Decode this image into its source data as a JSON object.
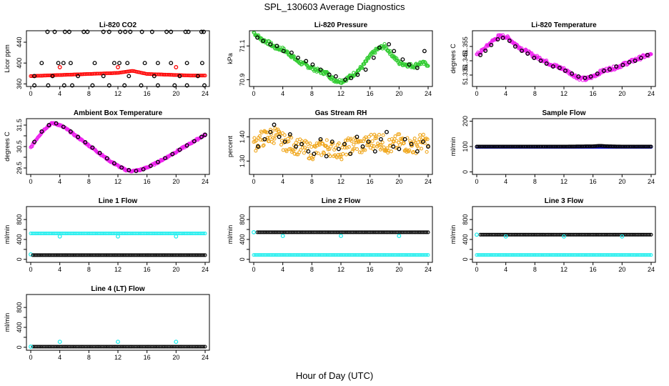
{
  "page": {
    "title": "SPL_130603  Average Diagnostics",
    "xlabel": "Hour of Day (UTC)"
  },
  "chart_data": [
    {
      "type": "scatter",
      "title": "Li-820 CO2",
      "ylabel": "Licor ppm",
      "xlim": [
        0,
        24
      ],
      "ylim": [
        355,
        462
      ],
      "xticks": [
        0,
        4,
        8,
        12,
        16,
        20,
        24
      ],
      "yticks": [
        360,
        400,
        440
      ],
      "ytick_labels": [
        "360",
        "400",
        "440"
      ],
      "series": [
        {
          "color": "#ff0000",
          "shape": "line",
          "x": [
            0,
            2,
            4,
            6,
            8,
            10,
            12,
            13,
            14,
            15,
            16,
            18,
            20,
            22,
            24
          ],
          "y": [
            375,
            376,
            377,
            378,
            379,
            380,
            381,
            383,
            385,
            382,
            379,
            378,
            377,
            376,
            376
          ]
        },
        {
          "color": "#ff0000",
          "shape": "circle",
          "x": [
            4,
            12,
            20
          ],
          "y": [
            392,
            392,
            392
          ]
        },
        {
          "color": "#000000",
          "shape": "circle",
          "x": [
            2.3,
            3.3,
            4.7,
            5.3,
            7.3,
            7.8,
            10,
            10.8,
            12.3,
            13,
            13.7,
            15.3,
            16.7,
            18.7,
            19.3,
            21.3,
            21.7,
            23.5,
            23.8
          ],
          "y": [
            460,
            460,
            460,
            460,
            460,
            460,
            460,
            460,
            460,
            460,
            460,
            460,
            460,
            460,
            460,
            460,
            460,
            460,
            460
          ]
        },
        {
          "color": "#000000",
          "shape": "circle",
          "x": [
            1.5,
            3.8,
            4.5,
            5.5,
            8.8,
            11.5,
            12.2,
            13.3,
            15.7,
            17.5,
            19.3,
            21.5,
            23.6
          ],
          "y": [
            400,
            400,
            400,
            400,
            400,
            400,
            400,
            400,
            400,
            400,
            400,
            400,
            400
          ]
        },
        {
          "color": "#000000",
          "shape": "circle",
          "x": [
            0.5,
            3,
            6.5,
            10,
            13.5,
            17,
            20.5,
            23
          ],
          "y": [
            375,
            375,
            375,
            375,
            375,
            375,
            375,
            375
          ]
        },
        {
          "color": "#000000",
          "shape": "circle",
          "x": [
            0.5,
            2.4,
            4.6,
            5.7,
            8.5,
            10.8,
            12.9,
            15.2,
            17.5,
            19.8,
            21.5,
            23.9
          ],
          "y": [
            357,
            357,
            357,
            357,
            357,
            357,
            357,
            357,
            357,
            357,
            357,
            357
          ]
        }
      ]
    },
    {
      "type": "scatter",
      "title": "Li-820 Pressure",
      "ylabel": "kPa",
      "xlim": [
        0,
        24
      ],
      "ylim": [
        70.86,
        71.19
      ],
      "xticks": [
        0,
        4,
        8,
        12,
        16,
        20,
        24
      ],
      "yticks": [
        70.9,
        71.1
      ],
      "ytick_labels": [
        "70.9",
        "71.1"
      ],
      "series": [
        {
          "color": "#33cc33",
          "shape": "band",
          "spread": 0.012,
          "x": [
            0,
            1,
            2,
            3,
            4,
            5,
            6,
            7,
            8,
            9,
            10,
            11,
            12,
            13,
            14,
            15,
            16,
            17,
            18,
            19,
            20,
            21,
            22,
            23,
            24
          ],
          "y": [
            71.18,
            71.14,
            71.12,
            71.09,
            71.08,
            71.05,
            71.01,
            70.99,
            70.97,
            70.95,
            70.94,
            70.9,
            70.89,
            70.91,
            70.94,
            70.98,
            71.04,
            71.08,
            71.1,
            71.05,
            71.0,
            70.99,
            70.98,
            71.0,
            70.99
          ]
        },
        {
          "color": "#000000",
          "shape": "circle",
          "x": [
            0.5,
            1.3,
            2.3,
            3.2,
            4.1,
            5.2,
            6.1,
            7.2,
            8.1,
            9.2,
            10.4,
            11.3,
            12.6,
            13.4,
            14.3,
            15.4,
            16.5,
            17.3,
            18.6,
            19.3,
            20.5,
            21.4,
            22.5,
            23.5
          ],
          "y": [
            71.15,
            71.13,
            71.11,
            71.1,
            71.07,
            71.06,
            71.03,
            71.01,
            70.99,
            70.96,
            70.93,
            70.92,
            70.9,
            70.91,
            70.93,
            70.96,
            71.03,
            71.09,
            71.11,
            71.07,
            71.02,
            70.99,
            70.97,
            71.07
          ]
        }
      ]
    },
    {
      "type": "scatter",
      "title": "Li-820 Temperature",
      "ylabel": "degrees C",
      "xlim": [
        0,
        24
      ],
      "ylim": [
        51.327,
        51.366
      ],
      "xticks": [
        0,
        4,
        8,
        12,
        16,
        20,
        24
      ],
      "yticks": [
        51.335,
        51.345,
        51.355
      ],
      "ytick_labels": [
        "51.335",
        "51.345",
        "51.355"
      ],
      "series": [
        {
          "color": "#ee22ee",
          "shape": "band",
          "spread": 0.0012,
          "x": [
            0,
            1,
            2,
            3,
            4,
            5,
            6,
            7,
            8,
            9,
            10,
            11,
            12,
            13,
            14,
            15,
            16,
            17,
            18,
            19,
            20,
            21,
            22,
            23,
            24
          ],
          "y": [
            51.349,
            51.353,
            51.358,
            51.362,
            51.362,
            51.358,
            51.354,
            51.351,
            51.348,
            51.346,
            51.343,
            51.341,
            51.339,
            51.336,
            51.333,
            51.332,
            51.334,
            51.337,
            51.339,
            51.34,
            51.342,
            51.344,
            51.346,
            51.348,
            51.349
          ]
        },
        {
          "color": "#000000",
          "shape": "circle",
          "x": [
            0.5,
            1.2,
            2,
            2.9,
            3.6,
            4.5,
            5.3,
            6.2,
            7,
            7.9,
            8.8,
            9.6,
            10.5,
            11.4,
            12.2,
            13.1,
            14,
            14.9,
            15.7,
            16.6,
            17.5,
            18.3,
            19.2,
            20.1,
            21,
            21.8,
            22.6,
            23.5
          ],
          "y": [
            51.349,
            51.352,
            51.356,
            51.36,
            51.361,
            51.359,
            51.355,
            51.352,
            51.35,
            51.347,
            51.345,
            51.343,
            51.341,
            51.34,
            51.338,
            51.336,
            51.334,
            51.333,
            51.334,
            51.336,
            51.338,
            51.339,
            51.341,
            51.342,
            51.344,
            51.345,
            51.347,
            51.349
          ]
        }
      ]
    },
    {
      "type": "scatter",
      "title": "Ambient Box Temperature",
      "ylabel": "degrees C",
      "xlim": [
        0,
        24
      ],
      "ylim": [
        29.2,
        31.8
      ],
      "xticks": [
        0,
        4,
        8,
        12,
        16,
        20,
        24
      ],
      "yticks": [
        29.5,
        30.0,
        30.5,
        31.0,
        31.5
      ],
      "ytick_labels": [
        "29.5",
        "30.5",
        "31.5"
      ],
      "series": [
        {
          "color": "#ee22ee",
          "shape": "band",
          "spread": 0.04,
          "x": [
            0,
            1,
            2,
            3,
            4,
            5,
            6,
            7,
            8,
            9,
            10,
            11,
            12,
            13,
            14,
            15,
            16,
            17,
            18,
            19,
            20,
            21,
            22,
            23,
            24
          ],
          "y": [
            30.45,
            30.95,
            31.35,
            31.6,
            31.5,
            31.3,
            31.05,
            30.8,
            30.55,
            30.3,
            30.05,
            29.8,
            29.6,
            29.42,
            29.35,
            29.4,
            29.52,
            29.68,
            29.86,
            30.05,
            30.25,
            30.45,
            30.65,
            30.85,
            31.05
          ]
        },
        {
          "color": "#000000",
          "shape": "circle",
          "x": [
            0.5,
            1.5,
            2.5,
            3.5,
            4.5,
            5.5,
            6.5,
            7.5,
            8.5,
            9.5,
            10.5,
            11.5,
            12.5,
            13.5,
            14.5,
            15.5,
            16.5,
            17.5,
            18.5,
            19.5,
            20.5,
            21.5,
            22.5,
            23.5,
            24
          ],
          "y": [
            30.72,
            31.2,
            31.5,
            31.58,
            31.42,
            31.2,
            30.95,
            30.7,
            30.45,
            30.2,
            29.95,
            29.72,
            29.52,
            29.4,
            29.36,
            29.44,
            29.6,
            29.78,
            29.96,
            30.15,
            30.35,
            30.55,
            30.75,
            30.95,
            31.05
          ]
        }
      ]
    },
    {
      "type": "scatter",
      "title": "Gas Stream RH",
      "ylabel": "percent",
      "xlim": [
        0,
        24
      ],
      "ylim": [
        1.245,
        1.475
      ],
      "xticks": [
        0,
        4,
        8,
        12,
        16,
        20,
        24
      ],
      "yticks": [
        1.3,
        1.4
      ],
      "ytick_labels": [
        "1.30",
        "1.40"
      ],
      "series": [
        {
          "color": "#f0a820",
          "shape": "band",
          "spread": 0.035,
          "x": [
            0,
            1,
            2,
            3,
            4,
            5,
            6,
            7,
            8,
            9,
            10,
            11,
            12,
            13,
            14,
            15,
            16,
            17,
            18,
            19,
            20,
            21,
            22,
            23,
            24
          ],
          "y": [
            1.37,
            1.39,
            1.4,
            1.41,
            1.38,
            1.37,
            1.36,
            1.35,
            1.34,
            1.35,
            1.36,
            1.35,
            1.34,
            1.36,
            1.37,
            1.36,
            1.38,
            1.39,
            1.37,
            1.36,
            1.38,
            1.37,
            1.36,
            1.38,
            1.37
          ]
        },
        {
          "color": "#000000",
          "shape": "circle",
          "x": [
            0.6,
            1.5,
            2.3,
            2.8,
            3.5,
            4.3,
            5,
            5.8,
            6.6,
            7.5,
            8.3,
            9.2,
            10,
            10.8,
            11.7,
            12.5,
            13.3,
            14.2,
            15,
            15.8,
            16.7,
            17.5,
            18.3,
            19.2,
            20,
            20.8,
            21.7,
            22.5,
            23.3,
            24
          ],
          "y": [
            1.36,
            1.39,
            1.42,
            1.45,
            1.4,
            1.38,
            1.41,
            1.36,
            1.37,
            1.34,
            1.33,
            1.39,
            1.32,
            1.38,
            1.35,
            1.37,
            1.33,
            1.4,
            1.36,
            1.38,
            1.34,
            1.39,
            1.42,
            1.36,
            1.35,
            1.39,
            1.37,
            1.34,
            1.38,
            1.36
          ]
        }
      ]
    },
    {
      "type": "scatter",
      "title": "Sample Flow",
      "ylabel": "ml/min",
      "xlim": [
        0,
        24
      ],
      "ylim": [
        -10,
        210
      ],
      "xticks": [
        0,
        4,
        8,
        12,
        16,
        20,
        24
      ],
      "yticks": [
        0,
        100,
        200
      ],
      "ytick_labels": [
        "0",
        "100",
        "200"
      ],
      "series": [
        {
          "color": "#0000cc",
          "shape": "line",
          "x": [
            0,
            24
          ],
          "y": [
            99,
            99
          ]
        },
        {
          "color": "#000000",
          "shape": "line",
          "x": [
            0,
            4,
            8,
            12,
            16,
            17,
            18,
            20,
            24
          ],
          "y": [
            100,
            100,
            100,
            100,
            101,
            103,
            101,
            100,
            100
          ]
        }
      ]
    },
    {
      "type": "scatter",
      "title": "Line 1 Flow",
      "ylabel": "ml/min",
      "xlim": [
        0,
        24
      ],
      "ylim": [
        -60,
        1060
      ],
      "xticks": [
        0,
        4,
        8,
        12,
        16,
        20,
        24
      ],
      "yticks": [
        0,
        200,
        400,
        600,
        800
      ],
      "ytick_labels": [
        "0",
        "400",
        "800"
      ],
      "series": [
        {
          "color": "#22eeee",
          "shape": "dense",
          "x": [
            0,
            24
          ],
          "y": [
            520,
            520
          ]
        },
        {
          "color": "#22eeee",
          "shape": "circle",
          "x": [
            0,
            4,
            12,
            20
          ],
          "y": [
            100,
            460,
            460,
            460
          ]
        },
        {
          "color": "#000000",
          "shape": "dense",
          "x": [
            0.3,
            24
          ],
          "y": [
            85,
            85
          ]
        }
      ]
    },
    {
      "type": "scatter",
      "title": "Line 2 Flow",
      "ylabel": "ml/min",
      "xlim": [
        0,
        24
      ],
      "ylim": [
        -60,
        1060
      ],
      "xticks": [
        0,
        4,
        8,
        12,
        16,
        20,
        24
      ],
      "yticks": [
        0,
        200,
        400,
        600,
        800
      ],
      "ytick_labels": [
        "0",
        "400",
        "800"
      ],
      "series": [
        {
          "color": "#000000",
          "shape": "dense",
          "x": [
            0.5,
            24
          ],
          "y": [
            545,
            545
          ]
        },
        {
          "color": "#22eeee",
          "shape": "circle",
          "x": [
            0,
            4,
            12,
            20
          ],
          "y": [
            545,
            470,
            470,
            470
          ]
        },
        {
          "color": "#22eeee",
          "shape": "dense",
          "x": [
            0,
            24
          ],
          "y": [
            88,
            88
          ]
        }
      ]
    },
    {
      "type": "scatter",
      "title": "Line 3 Flow",
      "ylabel": "ml/min",
      "xlim": [
        0,
        24
      ],
      "ylim": [
        -60,
        1060
      ],
      "xticks": [
        0,
        4,
        8,
        12,
        16,
        20,
        24
      ],
      "yticks": [
        0,
        200,
        400,
        600,
        800
      ],
      "ytick_labels": [
        "0",
        "400",
        "800"
      ],
      "series": [
        {
          "color": "#000000",
          "shape": "dense",
          "x": [
            0.5,
            24
          ],
          "y": [
            495,
            495
          ]
        },
        {
          "color": "#22eeee",
          "shape": "circle",
          "x": [
            0,
            4,
            12,
            20
          ],
          "y": [
            495,
            460,
            460,
            460
          ]
        },
        {
          "color": "#22eeee",
          "shape": "dense",
          "x": [
            0,
            24
          ],
          "y": [
            88,
            88
          ]
        }
      ]
    },
    {
      "type": "scatter",
      "title": "Line 4 (LT) Flow",
      "ylabel": "ml/min",
      "xlim": [
        0,
        24
      ],
      "ylim": [
        -60,
        1060
      ],
      "xticks": [
        0,
        4,
        8,
        12,
        16,
        20,
        24
      ],
      "yticks": [
        0,
        200,
        400,
        600,
        800
      ],
      "ytick_labels": [
        "0",
        "400",
        "800"
      ],
      "series": [
        {
          "color": "#000000",
          "shape": "dense",
          "x": [
            0.3,
            24
          ],
          "y": [
            12,
            12
          ]
        },
        {
          "color": "#22eeee",
          "shape": "circle",
          "x": [
            0,
            4,
            12,
            20
          ],
          "y": [
            12,
            110,
            110,
            110
          ]
        }
      ]
    }
  ]
}
